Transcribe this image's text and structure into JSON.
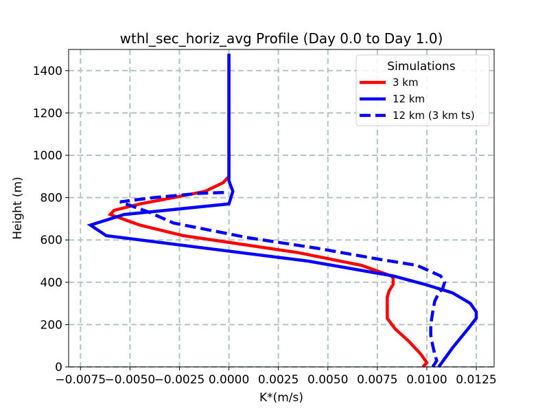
{
  "chart_data": {
    "type": "line",
    "title": "wthl_sec_horiz_avg Profile (Day 0.0 to Day 1.0)",
    "xlabel": "K*(m/s)",
    "ylabel": "Height (m)",
    "xlim": [
      -0.0081,
      0.0134
    ],
    "ylim": [
      0,
      1500
    ],
    "xticks": [
      -0.0075,
      -0.005,
      -0.0025,
      0.0,
      0.0025,
      0.005,
      0.0075,
      0.01,
      0.0125
    ],
    "xtick_labels": [
      "−0.0075",
      "−0.0050",
      "−0.0025",
      "0.0000",
      "0.0025",
      "0.0050",
      "0.0075",
      "0.0100",
      "0.0125"
    ],
    "yticks": [
      0,
      200,
      400,
      600,
      800,
      1000,
      1200,
      1400
    ],
    "ytick_labels": [
      "0",
      "200",
      "400",
      "600",
      "800",
      "1000",
      "1200",
      "1400"
    ],
    "grid": true,
    "legend": {
      "title": "Simulations",
      "placement": "top-right"
    },
    "series": [
      {
        "name": "3 km",
        "color": "#ff0000",
        "dash": "solid",
        "x": [
          0.0098,
          0.01,
          0.0097,
          0.0091,
          0.0084,
          0.008,
          0.008,
          0.008,
          0.0081,
          0.0083,
          0.0083,
          0.0082,
          0.0067,
          0.0035,
          -0.0023,
          -0.0045,
          -0.0054,
          -0.006,
          -0.0058,
          -0.0045,
          -0.0028,
          -0.0012,
          -0.0003,
          0.0,
          0.0,
          0.0,
          0.0,
          0.0
        ],
        "y": [
          0,
          20,
          60,
          120,
          180,
          230,
          290,
          330,
          360,
          390,
          420,
          430,
          480,
          540,
          620,
          670,
          700,
          720,
          740,
          770,
          800,
          830,
          870,
          900,
          930,
          1100,
          1300,
          1480
        ]
      },
      {
        "name": "12 km",
        "color": "#0000ff",
        "dash": "solid",
        "x": [
          0.0106,
          0.0113,
          0.012,
          0.0125,
          0.0125,
          0.0122,
          0.0113,
          0.0099,
          0.0083,
          0.004,
          -0.0062,
          -0.007,
          -0.0053,
          0.0,
          0.0002,
          0.0,
          0.0,
          0.0,
          0.0,
          0.0
        ],
        "y": [
          0,
          90,
          170,
          230,
          260,
          300,
          350,
          390,
          430,
          500,
          620,
          670,
          720,
          770,
          830,
          880,
          960,
          1100,
          1300,
          1480
        ]
      },
      {
        "name": "12 km (3 km ts)",
        "color": "#0000ff",
        "dash": "dashed",
        "x": [
          0.0103,
          0.0105,
          0.0104,
          0.0103,
          0.0102,
          0.0102,
          0.0103,
          0.0104,
          0.0106,
          0.0108,
          0.0109,
          0.0107,
          0.0095,
          0.0075,
          0.0045,
          0.001,
          -0.0028,
          -0.004,
          -0.0055,
          -0.0038,
          -0.0015,
          0.0
        ],
        "y": [
          0,
          30,
          60,
          100,
          150,
          200,
          260,
          310,
          350,
          370,
          400,
          430,
          480,
          510,
          560,
          610,
          680,
          730,
          780,
          800,
          820,
          825
        ]
      }
    ]
  }
}
